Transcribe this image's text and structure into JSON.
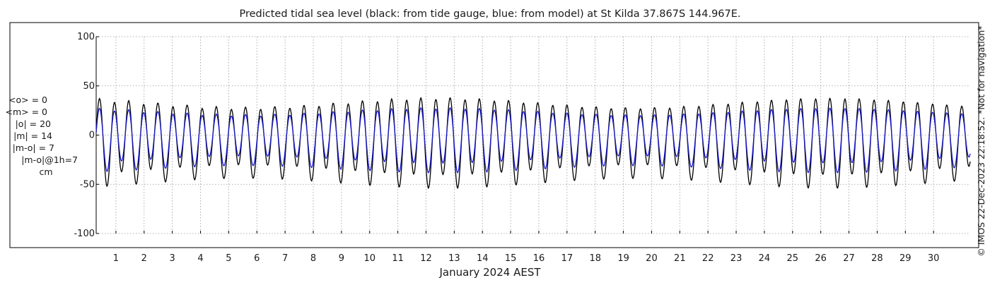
{
  "chart_data": {
    "type": "line",
    "title": "Predicted tidal sea level (black: from tide gauge, blue: from model) at St Kilda 37.867S 144.967E.",
    "xlabel": "January 2024 AEST",
    "ylabel": "",
    "ylim": [
      -100,
      100
    ],
    "yticks": [
      100,
      50,
      0,
      -50,
      -100
    ],
    "xlim": [
      0.3,
      31.3
    ],
    "xticks": [
      1,
      2,
      3,
      4,
      5,
      6,
      7,
      8,
      9,
      10,
      11,
      12,
      13,
      14,
      15,
      16,
      17,
      18,
      19,
      20,
      21,
      22,
      23,
      24,
      25,
      26,
      27,
      28,
      29,
      30
    ],
    "grid": true,
    "x_units": "day of month (January 2024)",
    "y_units": "cm",
    "series": [
      {
        "color": "#000000",
        "sample_step_days": 0.02,
        "values": []
      },
      {
        "color": "#1a1acc",
        "sample_step_days": 0.02,
        "values": []
      }
    ]
  },
  "stats": {
    "lines": [
      "<o> = 0",
      "<m> = 0",
      "|o| = 20",
      "|m| = 14",
      "|m-o| = 7",
      "|m-o|@1h=7",
      "cm"
    ]
  },
  "side_note": "© IMOS 22-Dec-2023 22:18:52. *Not for navigation*",
  "colors": {
    "gauge": "#000000",
    "model": "#1a1acc",
    "grid": "#9a9a9a",
    "axis": "#000000"
  }
}
